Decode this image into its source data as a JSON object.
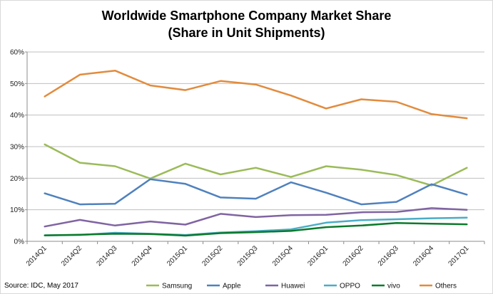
{
  "chart_data": {
    "type": "line",
    "title": "Worldwide Smartphone Company Market Share",
    "subtitle": "(Share in Unit Shipments)",
    "xlabel": "",
    "ylabel": "",
    "categories": [
      "2014Q1",
      "2014Q2",
      "2014Q3",
      "2014Q4",
      "2015Q1",
      "2015Q2",
      "2015Q3",
      "2015Q4",
      "2016Q1",
      "2016Q2",
      "2016Q3",
      "2016Q4",
      "2017Q1"
    ],
    "ylim": [
      0,
      60
    ],
    "yticks": [
      0,
      10,
      20,
      30,
      40,
      50,
      60
    ],
    "ytick_labels": [
      "0%",
      "10%",
      "20%",
      "30%",
      "40%",
      "50%",
      "60%"
    ],
    "grid": true,
    "legend_position": "bottom",
    "series": [
      {
        "name": "Samsung",
        "color": "#9bbb59",
        "values": [
          30.7,
          24.9,
          23.8,
          19.9,
          24.6,
          21.2,
          23.3,
          20.4,
          23.8,
          22.7,
          21.0,
          17.7,
          23.3
        ]
      },
      {
        "name": "Apple",
        "color": "#4f81bd",
        "values": [
          15.2,
          11.7,
          11.9,
          19.7,
          18.2,
          13.9,
          13.5,
          18.7,
          15.4,
          11.7,
          12.5,
          18.1,
          14.8
        ]
      },
      {
        "name": "Huawei",
        "color": "#8064a2",
        "values": [
          4.7,
          6.8,
          5.0,
          6.3,
          5.3,
          8.7,
          7.7,
          8.3,
          8.4,
          9.2,
          9.3,
          10.5,
          10.0
        ]
      },
      {
        "name": "OPPO",
        "color": "#4bacc6",
        "values": [
          1.9,
          2.0,
          2.7,
          2.4,
          2.0,
          2.8,
          3.2,
          3.8,
          5.9,
          6.7,
          7.0,
          7.3,
          7.5
        ]
      },
      {
        "name": "vivo",
        "color": "#0b7a2c",
        "values": [
          1.9,
          2.1,
          2.4,
          2.3,
          1.8,
          2.6,
          2.9,
          3.3,
          4.5,
          5.0,
          5.8,
          5.6,
          5.4
        ]
      },
      {
        "name": "Others",
        "color": "#e28b3d",
        "values": [
          45.9,
          52.8,
          54.1,
          49.4,
          47.9,
          50.8,
          49.7,
          46.2,
          42.1,
          45.0,
          44.2,
          40.3,
          39.0
        ]
      }
    ]
  },
  "source": "Source: IDC, May 2017"
}
